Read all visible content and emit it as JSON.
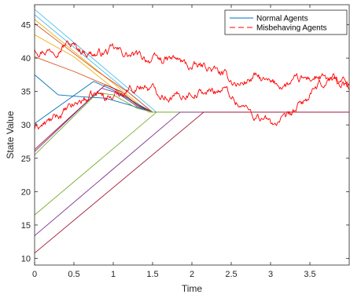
{
  "chart_data": {
    "type": "line",
    "xlabel": "Time",
    "ylabel": "State Value",
    "xlim": [
      0,
      4
    ],
    "ylim": [
      9,
      48
    ],
    "xticks": [
      0,
      0.5,
      1,
      1.5,
      2,
      2.5,
      3,
      3.5
    ],
    "xtick_labels": [
      "0",
      "0.5",
      "1",
      "1.5",
      "2",
      "2.5",
      "3",
      "3.5"
    ],
    "yticks": [
      10,
      15,
      20,
      25,
      30,
      35,
      40,
      45
    ],
    "ytick_labels": [
      "10",
      "15",
      "20",
      "25",
      "30",
      "35",
      "40",
      "45"
    ],
    "grid": false,
    "legend_position": "top-right",
    "legend": [
      {
        "label": "Normal Agents",
        "style": "solid",
        "color": "#0072BD"
      },
      {
        "label": "Misbehaving Agents",
        "style": "dashed",
        "color": "#FF0000"
      }
    ],
    "consensus_value": 31.9,
    "normal_agents": [
      {
        "color": "#4DBEEE",
        "x": [
          0,
          1.55,
          4
        ],
        "y": [
          47.3,
          31.9,
          31.9
        ]
      },
      {
        "color": "#4DBEEE",
        "x": [
          0,
          1.5,
          4
        ],
        "y": [
          46.5,
          31.9,
          31.9
        ]
      },
      {
        "color": "#EDB120",
        "x": [
          0,
          1.45,
          4
        ],
        "y": [
          45.8,
          31.9,
          31.9
        ]
      },
      {
        "color": "#D95319",
        "x": [
          0,
          0.3,
          0.8,
          1.2,
          1.5,
          4
        ],
        "y": [
          45.2,
          42.5,
          38.0,
          34.8,
          31.9,
          31.9
        ]
      },
      {
        "color": "#EDB120",
        "x": [
          0,
          0.5,
          1.0,
          1.3,
          1.5,
          4
        ],
        "y": [
          43.5,
          40.2,
          35.5,
          33.2,
          31.9,
          31.9
        ]
      },
      {
        "color": "#D95319",
        "x": [
          0,
          0.5,
          1.0,
          1.3,
          1.5,
          4
        ],
        "y": [
          40.2,
          38.0,
          35.5,
          33.0,
          31.9,
          31.9
        ]
      },
      {
        "color": "#0072BD",
        "x": [
          0,
          0.3,
          0.6,
          0.9,
          1.2,
          1.5,
          4
        ],
        "y": [
          37.5,
          34.5,
          34.2,
          34.0,
          33.0,
          31.9,
          31.9
        ]
      },
      {
        "color": "#0072BD",
        "x": [
          0,
          0.75,
          1.0,
          1.25,
          1.5,
          4
        ],
        "y": [
          30.2,
          36.5,
          35.2,
          33.5,
          31.9,
          31.9
        ]
      },
      {
        "color": "#A2142F",
        "x": [
          0,
          0.9,
          1.1,
          1.3,
          1.5,
          4
        ],
        "y": [
          26.3,
          36.0,
          35.0,
          33.0,
          31.9,
          31.9
        ]
      },
      {
        "color": "#7E2F8E",
        "x": [
          0,
          0.85,
          1.05,
          1.3,
          1.5,
          4
        ],
        "y": [
          26.0,
          35.5,
          34.8,
          32.8,
          31.9,
          31.9
        ]
      },
      {
        "color": "#77AC30",
        "x": [
          0,
          0.8,
          1.0,
          1.3,
          1.5,
          4
        ],
        "y": [
          25.5,
          34.8,
          34.5,
          32.5,
          31.9,
          31.9
        ]
      },
      {
        "color": "#77AC30",
        "x": [
          0,
          1.55,
          4
        ],
        "y": [
          16.5,
          31.9,
          31.9
        ]
      },
      {
        "color": "#7E2F8E",
        "x": [
          0,
          1.85,
          4
        ],
        "y": [
          13.4,
          31.9,
          31.9
        ]
      },
      {
        "color": "#A2142F",
        "x": [
          0,
          2.15,
          4
        ],
        "y": [
          10.8,
          31.9,
          31.9
        ]
      }
    ],
    "misbehaving_agents": [
      {
        "color": "#FF0000",
        "x": [
          0,
          0.2,
          0.4,
          0.6,
          0.8,
          1.0,
          1.2,
          1.4,
          1.6,
          1.8,
          2.0,
          2.2,
          2.4,
          2.6,
          2.8,
          3.0,
          3.2,
          3.4,
          3.6,
          3.8,
          4.0
        ],
        "y": [
          41.5,
          41.3,
          42.3,
          41.2,
          40.6,
          41.2,
          40.4,
          40.0,
          39.6,
          39.8,
          38.5,
          38.7,
          37.3,
          36.0,
          37.2,
          36.0,
          36.0,
          36.6,
          37.2,
          36.2,
          35.6
        ]
      },
      {
        "color": "#FF0000",
        "x": [
          0,
          0.2,
          0.4,
          0.6,
          0.8,
          1.0,
          1.2,
          1.4,
          1.6,
          1.8,
          2.0,
          2.2,
          2.4,
          2.6,
          2.8,
          3.0,
          3.2,
          3.4,
          3.6,
          3.8,
          4.0
        ],
        "y": [
          29.5,
          30.5,
          32.0,
          33.7,
          34.5,
          34.2,
          35.5,
          35.9,
          34.8,
          34.2,
          35.0,
          34.8,
          35.5,
          33.2,
          31.5,
          30.3,
          30.5,
          33.2,
          35.4,
          37.3,
          36.0
        ]
      }
    ]
  }
}
